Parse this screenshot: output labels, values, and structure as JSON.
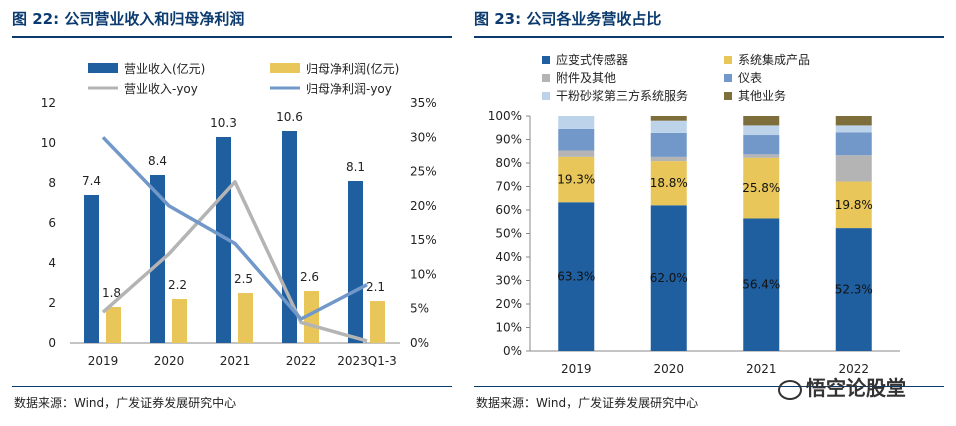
{
  "left": {
    "title": "图 22: 公司营业收入和归母净利润",
    "source": "数据来源：Wind，广发证券发展研究中心"
  },
  "right": {
    "title": "图 23: 公司各业务营收占比",
    "source": "数据来源：Wind，广发证券发展研究中心"
  },
  "watermark": "悟空论股堂",
  "colors": {
    "title": "#0b3a6e",
    "revenue": "#1f5fa0",
    "profit": "#e8c65a",
    "revenue_yoy": "#b4b4b4",
    "profit_yoy": "#7198c8",
    "sensor": "#1f5fa0",
    "system": "#e8c65a",
    "accessory": "#b4b4b4",
    "instrument": "#7198c8",
    "powder": "#bcd3ea",
    "other": "#7d6e3c"
  },
  "chart_data": [
    {
      "type": "bar",
      "title": "公司营业收入和归母净利润",
      "categories": [
        "2019",
        "2020",
        "2021",
        "2022",
        "2023Q1-3"
      ],
      "ylim": [
        0,
        12
      ],
      "yticks": [
        "0",
        "2",
        "4",
        "6",
        "8",
        "10",
        "12"
      ],
      "y2lim": [
        0,
        35
      ],
      "y2ticks": [
        "0%",
        "5%",
        "10%",
        "15%",
        "20%",
        "25%",
        "30%",
        "35%"
      ],
      "series": [
        {
          "name": "营业收入(亿元)",
          "kind": "bar",
          "axis": "left",
          "values": [
            7.4,
            8.4,
            10.3,
            10.6,
            8.1
          ],
          "labels": [
            "7.4",
            "8.4",
            "10.3",
            "10.6",
            "8.1"
          ]
        },
        {
          "name": "归母净利润(亿元)",
          "kind": "bar",
          "axis": "left",
          "values": [
            1.8,
            2.2,
            2.5,
            2.6,
            2.1
          ],
          "labels": [
            "1.8",
            "2.2",
            "2.5",
            "2.6",
            "2.1"
          ]
        },
        {
          "name": "营业收入-yoy",
          "kind": "line",
          "axis": "right",
          "values": [
            4.5,
            13.0,
            23.5,
            3.0,
            0.3
          ]
        },
        {
          "name": "归母净利润-yoy",
          "kind": "line",
          "axis": "right",
          "values": [
            30.0,
            20.0,
            14.5,
            3.5,
            8.5
          ]
        }
      ]
    },
    {
      "type": "bar",
      "stacked": true,
      "title": "公司各业务营收占比",
      "categories": [
        "2019",
        "2020",
        "2021",
        "2022"
      ],
      "ylim": [
        0,
        100
      ],
      "yticks": [
        "0%",
        "10%",
        "20%",
        "30%",
        "40%",
        "50%",
        "60%",
        "70%",
        "80%",
        "90%",
        "100%"
      ],
      "series": [
        {
          "name": "应变式传感器",
          "values": [
            63.3,
            62.0,
            56.4,
            52.3
          ],
          "labels": [
            "63.3%",
            "62.0%",
            "56.4%",
            "52.3%"
          ]
        },
        {
          "name": "系统集成产品",
          "values": [
            19.3,
            18.8,
            25.8,
            19.8
          ],
          "labels": [
            "19.3%",
            "18.8%",
            "25.8%",
            "19.8%"
          ]
        },
        {
          "name": "附件及其他",
          "values": [
            2.7,
            1.8,
            1.5,
            11.2
          ]
        },
        {
          "name": "仪表",
          "values": [
            9.2,
            10.2,
            8.2,
            9.7
          ]
        },
        {
          "name": "干粉砂浆第三方系统服务",
          "values": [
            5.5,
            5.2,
            4.1,
            3.0
          ]
        },
        {
          "name": "其他业务",
          "values": [
            0.0,
            2.0,
            4.0,
            4.0
          ]
        }
      ]
    }
  ]
}
